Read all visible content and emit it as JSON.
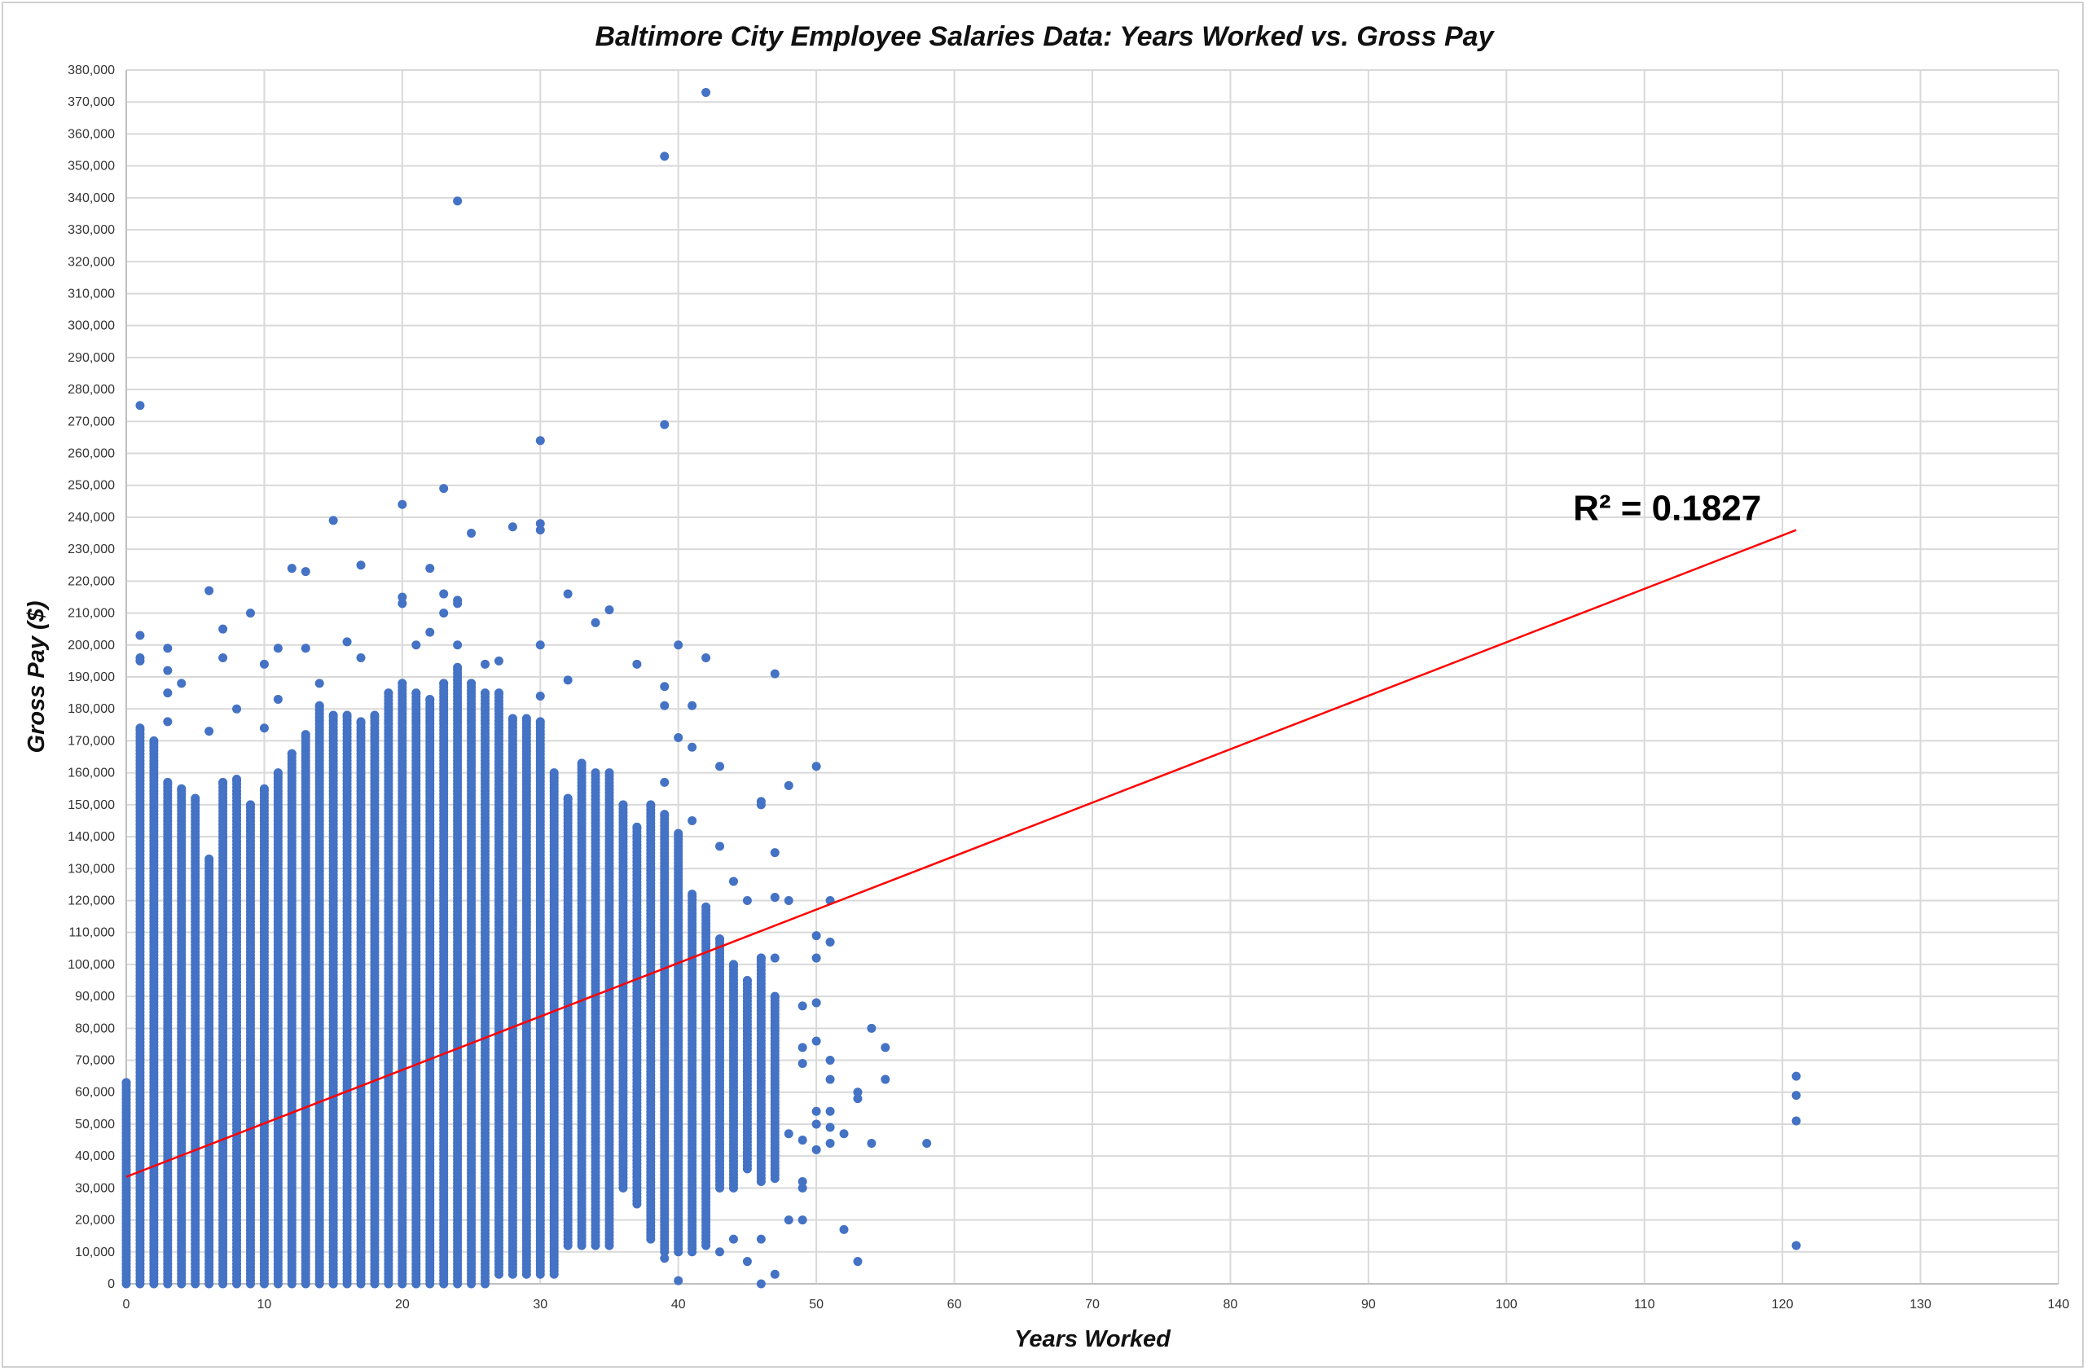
{
  "chart_data": {
    "type": "scatter",
    "title": "Baltimore City Employee Salaries Data: Years Worked vs. Gross Pay",
    "xlabel": "Years Worked",
    "ylabel": "Gross Pay ($)",
    "xlim": [
      0,
      140
    ],
    "ylim": [
      0,
      380000
    ],
    "x_ticks": [
      "0",
      "10",
      "20",
      "30",
      "40",
      "50",
      "60",
      "70",
      "80",
      "90",
      "100",
      "110",
      "120",
      "130",
      "140"
    ],
    "y_ticks": [
      "0",
      "10,000",
      "20,000",
      "30,000",
      "40,000",
      "50,000",
      "60,000",
      "70,000",
      "80,000",
      "90,000",
      "100,000",
      "110,000",
      "120,000",
      "130,000",
      "140,000",
      "150,000",
      "160,000",
      "170,000",
      "180,000",
      "190,000",
      "200,000",
      "210,000",
      "220,000",
      "230,000",
      "240,000",
      "250,000",
      "260,000",
      "270,000",
      "280,000",
      "290,000",
      "300,000",
      "310,000",
      "320,000",
      "330,000",
      "340,000",
      "350,000",
      "360,000",
      "370,000",
      "380,000"
    ],
    "grid": true,
    "point_color": "#4472c4",
    "trend_color": "#ff0000",
    "trendline": {
      "type": "linear",
      "x": [
        0,
        121
      ],
      "y": [
        33500,
        236000
      ],
      "r2_label": "R² = 0.1827"
    },
    "dense_columns": [
      {
        "x": 0,
        "low": 0,
        "high": 63000
      },
      {
        "x": 1,
        "low": 0,
        "high": 174000
      },
      {
        "x": 2,
        "low": 0,
        "high": 170000
      },
      {
        "x": 3,
        "low": 0,
        "high": 157000
      },
      {
        "x": 4,
        "low": 0,
        "high": 155000
      },
      {
        "x": 5,
        "low": 0,
        "high": 152000
      },
      {
        "x": 6,
        "low": 0,
        "high": 133000
      },
      {
        "x": 7,
        "low": 0,
        "high": 157000
      },
      {
        "x": 8,
        "low": 0,
        "high": 158000
      },
      {
        "x": 9,
        "low": 0,
        "high": 150000
      },
      {
        "x": 10,
        "low": 0,
        "high": 155000
      },
      {
        "x": 11,
        "low": 0,
        "high": 160000
      },
      {
        "x": 12,
        "low": 0,
        "high": 166000
      },
      {
        "x": 13,
        "low": 0,
        "high": 172000
      },
      {
        "x": 14,
        "low": 0,
        "high": 181000
      },
      {
        "x": 15,
        "low": 0,
        "high": 178000
      },
      {
        "x": 16,
        "low": 0,
        "high": 178000
      },
      {
        "x": 17,
        "low": 0,
        "high": 176000
      },
      {
        "x": 18,
        "low": 0,
        "high": 178000
      },
      {
        "x": 19,
        "low": 0,
        "high": 185000
      },
      {
        "x": 20,
        "low": 0,
        "high": 188000
      },
      {
        "x": 21,
        "low": 0,
        "high": 185000
      },
      {
        "x": 22,
        "low": 0,
        "high": 183000
      },
      {
        "x": 23,
        "low": 0,
        "high": 188000
      },
      {
        "x": 24,
        "low": 0,
        "high": 193000
      },
      {
        "x": 25,
        "low": 0,
        "high": 188000
      },
      {
        "x": 26,
        "low": 0,
        "high": 185000
      },
      {
        "x": 27,
        "low": 3000,
        "high": 185000
      },
      {
        "x": 28,
        "low": 3000,
        "high": 177000
      },
      {
        "x": 29,
        "low": 3000,
        "high": 177000
      },
      {
        "x": 30,
        "low": 3000,
        "high": 176000
      },
      {
        "x": 31,
        "low": 3000,
        "high": 160000
      },
      {
        "x": 32,
        "low": 12000,
        "high": 152000
      },
      {
        "x": 33,
        "low": 12000,
        "high": 163000
      },
      {
        "x": 34,
        "low": 12000,
        "high": 160000
      },
      {
        "x": 35,
        "low": 12000,
        "high": 160000
      },
      {
        "x": 36,
        "low": 30000,
        "high": 150000
      },
      {
        "x": 37,
        "low": 25000,
        "high": 143000
      },
      {
        "x": 38,
        "low": 14000,
        "high": 150000
      },
      {
        "x": 39,
        "low": 10000,
        "high": 147000
      },
      {
        "x": 40,
        "low": 10000,
        "high": 141000
      },
      {
        "x": 41,
        "low": 10000,
        "high": 122000
      },
      {
        "x": 42,
        "low": 12000,
        "high": 118000
      },
      {
        "x": 43,
        "low": 30000,
        "high": 108000
      },
      {
        "x": 44,
        "low": 30000,
        "high": 100000
      },
      {
        "x": 45,
        "low": 36000,
        "high": 95000
      },
      {
        "x": 46,
        "low": 32000,
        "high": 102000
      },
      {
        "x": 47,
        "low": 33000,
        "high": 90000
      }
    ],
    "sparse_points": [
      [
        1,
        275000
      ],
      [
        1,
        203000
      ],
      [
        1,
        196000
      ],
      [
        1,
        195000
      ],
      [
        3,
        199000
      ],
      [
        3,
        192000
      ],
      [
        3,
        185000
      ],
      [
        3,
        176000
      ],
      [
        4,
        188000
      ],
      [
        6,
        217000
      ],
      [
        6,
        173000
      ],
      [
        7,
        205000
      ],
      [
        7,
        196000
      ],
      [
        8,
        180000
      ],
      [
        9,
        210000
      ],
      [
        10,
        194000
      ],
      [
        10,
        174000
      ],
      [
        11,
        199000
      ],
      [
        11,
        183000
      ],
      [
        12,
        224000
      ],
      [
        13,
        223000
      ],
      [
        13,
        199000
      ],
      [
        14,
        188000
      ],
      [
        15,
        239000
      ],
      [
        16,
        201000
      ],
      [
        17,
        225000
      ],
      [
        17,
        196000
      ],
      [
        20,
        244000
      ],
      [
        20,
        215000
      ],
      [
        20,
        213000
      ],
      [
        21,
        200000
      ],
      [
        22,
        224000
      ],
      [
        22,
        204000
      ],
      [
        23,
        249000
      ],
      [
        23,
        216000
      ],
      [
        23,
        210000
      ],
      [
        24,
        339000
      ],
      [
        24,
        214000
      ],
      [
        24,
        213000
      ],
      [
        24,
        200000
      ],
      [
        25,
        235000
      ],
      [
        26,
        194000
      ],
      [
        27,
        195000
      ],
      [
        28,
        237000
      ],
      [
        30,
        264000
      ],
      [
        30,
        238000
      ],
      [
        30,
        236000
      ],
      [
        30,
        200000
      ],
      [
        30,
        184000
      ],
      [
        32,
        216000
      ],
      [
        32,
        189000
      ],
      [
        34,
        207000
      ],
      [
        35,
        211000
      ],
      [
        37,
        194000
      ],
      [
        39,
        353000
      ],
      [
        39,
        269000
      ],
      [
        39,
        187000
      ],
      [
        39,
        181000
      ],
      [
        39,
        157000
      ],
      [
        40,
        200000
      ],
      [
        40,
        171000
      ],
      [
        41,
        181000
      ],
      [
        41,
        168000
      ],
      [
        41,
        145000
      ],
      [
        42,
        373000
      ],
      [
        42,
        196000
      ],
      [
        43,
        162000
      ],
      [
        43,
        137000
      ],
      [
        44,
        126000
      ],
      [
        45,
        120000
      ],
      [
        46,
        151000
      ],
      [
        46,
        150000
      ],
      [
        46,
        102000
      ],
      [
        47,
        191000
      ],
      [
        47,
        135000
      ],
      [
        47,
        121000
      ],
      [
        47,
        102000
      ],
      [
        48,
        156000
      ],
      [
        48,
        120000
      ],
      [
        48,
        47000
      ],
      [
        48,
        20000
      ],
      [
        49,
        87000
      ],
      [
        49,
        74000
      ],
      [
        49,
        69000
      ],
      [
        49,
        45000
      ],
      [
        49,
        32000
      ],
      [
        49,
        30000
      ],
      [
        49,
        20000
      ],
      [
        50,
        162000
      ],
      [
        50,
        109000
      ],
      [
        50,
        102000
      ],
      [
        50,
        88000
      ],
      [
        50,
        76000
      ],
      [
        50,
        54000
      ],
      [
        50,
        50000
      ],
      [
        50,
        42000
      ],
      [
        51,
        120000
      ],
      [
        51,
        107000
      ],
      [
        51,
        70000
      ],
      [
        51,
        64000
      ],
      [
        51,
        54000
      ],
      [
        51,
        49000
      ],
      [
        51,
        44000
      ],
      [
        52,
        47000
      ],
      [
        52,
        17000
      ],
      [
        53,
        60000
      ],
      [
        53,
        58000
      ],
      [
        53,
        7000
      ],
      [
        54,
        80000
      ],
      [
        54,
        44000
      ],
      [
        55,
        74000
      ],
      [
        55,
        64000
      ],
      [
        58,
        44000
      ],
      [
        45,
        7000
      ],
      [
        44,
        14000
      ],
      [
        43,
        10000
      ],
      [
        46,
        14000
      ],
      [
        47,
        3000
      ],
      [
        46,
        0
      ],
      [
        40,
        1000
      ],
      [
        39,
        8000
      ],
      [
        121,
        65000
      ],
      [
        121,
        59000
      ],
      [
        121,
        51000
      ],
      [
        121,
        12000
      ]
    ]
  }
}
